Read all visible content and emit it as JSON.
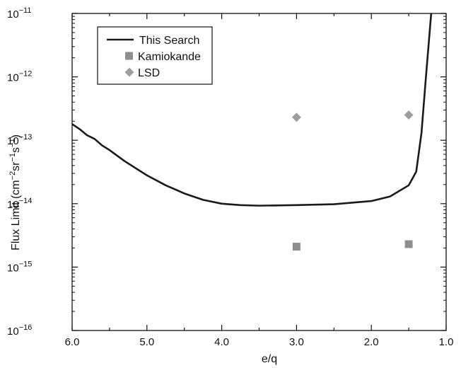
{
  "chart_data": {
    "type": "line",
    "title": "",
    "xlabel": "e/q",
    "ylabel": {
      "base": "Flux Limit (cm",
      "exp1": "−2",
      "mid1": "sr",
      "exp2": "−1",
      "mid2": "s",
      "exp3": "−1",
      "end": ")"
    },
    "xlim": [
      6.0,
      1.0
    ],
    "x_reversed": true,
    "ylim": [
      1e-16,
      1e-11
    ],
    "y_scale": "log",
    "x_ticks": [
      {
        "value": 6.0,
        "label": "6.0"
      },
      {
        "value": 5.0,
        "label": "5.0"
      },
      {
        "value": 4.0,
        "label": "4.0"
      },
      {
        "value": 3.0,
        "label": "3.0"
      },
      {
        "value": 2.0,
        "label": "2.0"
      },
      {
        "value": 1.0,
        "label": "1.0"
      }
    ],
    "y_ticks": [
      {
        "value": 1e-11,
        "base": "10",
        "exp": "−11"
      },
      {
        "value": 1e-12,
        "base": "10",
        "exp": "−12"
      },
      {
        "value": 1e-13,
        "base": "10",
        "exp": "−13"
      },
      {
        "value": 1e-14,
        "base": "10",
        "exp": "−14"
      },
      {
        "value": 1e-15,
        "base": "10",
        "exp": "−15"
      },
      {
        "value": 1e-16,
        "base": "10",
        "exp": "−16"
      }
    ],
    "grid": false,
    "legend_position": "top-left",
    "series": [
      {
        "name": "This Search",
        "kind": "line",
        "color": "#1a1a1a",
        "points": [
          {
            "x": 6.0,
            "y": 1.8e-13
          },
          {
            "x": 5.9,
            "y": 1.5e-13
          },
          {
            "x": 5.8,
            "y": 1.2e-13
          },
          {
            "x": 5.7,
            "y": 1.05e-13
          },
          {
            "x": 5.6,
            "y": 8.3e-14
          },
          {
            "x": 5.5,
            "y": 7e-14
          },
          {
            "x": 5.3,
            "y": 4.7e-14
          },
          {
            "x": 5.0,
            "y": 2.8e-14
          },
          {
            "x": 4.75,
            "y": 1.95e-14
          },
          {
            "x": 4.5,
            "y": 1.45e-14
          },
          {
            "x": 4.25,
            "y": 1.15e-14
          },
          {
            "x": 4.0,
            "y": 1e-14
          },
          {
            "x": 3.75,
            "y": 9.5e-15
          },
          {
            "x": 3.5,
            "y": 9.3e-15
          },
          {
            "x": 3.0,
            "y": 9.5e-15
          },
          {
            "x": 2.5,
            "y": 9.8e-15
          },
          {
            "x": 2.0,
            "y": 1.1e-14
          },
          {
            "x": 1.75,
            "y": 1.3e-14
          },
          {
            "x": 1.5,
            "y": 1.95e-14
          },
          {
            "x": 1.4,
            "y": 3.2e-14
          },
          {
            "x": 1.33,
            "y": 1.3e-13
          },
          {
            "x": 1.27,
            "y": 1e-12
          },
          {
            "x": 1.2,
            "y": 1e-11
          }
        ]
      },
      {
        "name": "Kamiokande",
        "kind": "square",
        "color": "#8e8e8e",
        "points": [
          {
            "x": 3.0,
            "y": 2.1e-15
          },
          {
            "x": 1.5,
            "y": 2.3e-15
          }
        ]
      },
      {
        "name": "LSD",
        "kind": "diamond",
        "color": "#9e9e9e",
        "points": [
          {
            "x": 3.0,
            "y": 2.3e-13
          },
          {
            "x": 1.5,
            "y": 2.5e-13
          }
        ]
      }
    ]
  }
}
